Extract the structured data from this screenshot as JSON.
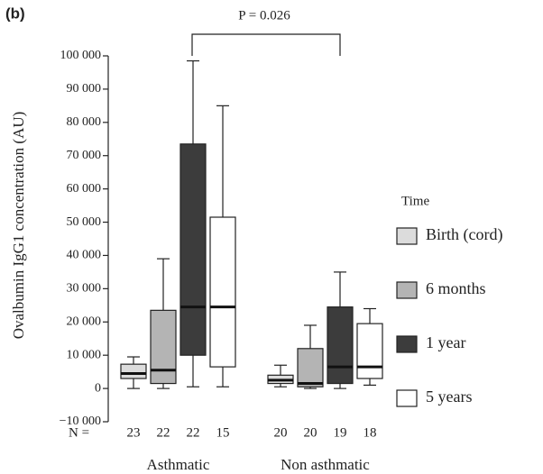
{
  "chart_data": {
    "type": "box",
    "title": "(b)",
    "annotation": "P = 0.026",
    "y_label": "Ovalbumin IgG1 concentration (AU)",
    "legend_title": "Time",
    "n_label": "N =",
    "categories": [
      "Asthmatic",
      "Non asthmatic"
    ],
    "ylim": [
      -10000,
      100000
    ],
    "yticks": [
      {
        "value": -10000,
        "label": "−10 000"
      },
      0,
      {
        "value": 10000,
        "label": "10 000"
      },
      {
        "value": 20000,
        "label": "20 000"
      },
      {
        "value": 30000,
        "label": "30 000"
      },
      {
        "value": 40000,
        "label": "40 000"
      },
      {
        "value": 50000,
        "label": "50 000"
      },
      {
        "value": 60000,
        "label": "60 000"
      },
      {
        "value": 70000,
        "label": "70 000"
      },
      {
        "value": 80000,
        "label": "80 000"
      },
      {
        "value": 90000,
        "label": "90 000"
      },
      {
        "value": 100000,
        "label": "100 000"
      }
    ],
    "series": [
      {
        "name": "Birth (cord)",
        "color": "#dcdcdc",
        "n": [
          23,
          20
        ],
        "values": [
          {
            "min": 0,
            "q1": 3000,
            "median": 4500,
            "q3": 7300,
            "max": 9500
          },
          {
            "min": 500,
            "q1": 1500,
            "median": 2500,
            "q3": 4000,
            "max": 7000
          }
        ]
      },
      {
        "name": "6 months",
        "color": "#b4b4b4",
        "n": [
          22,
          20
        ],
        "values": [
          {
            "min": 0,
            "q1": 1500,
            "median": 5500,
            "q3": 23500,
            "max": 39000
          },
          {
            "min": 0,
            "q1": 500,
            "median": 1500,
            "q3": 12000,
            "max": 19000
          }
        ]
      },
      {
        "name": "1 year",
        "color": "#3c3c3c",
        "n": [
          22,
          19
        ],
        "values": [
          {
            "min": 500,
            "q1": 10000,
            "median": 24500,
            "q3": 73500,
            "max": 98500
          },
          {
            "min": 0,
            "q1": 1500,
            "median": 6500,
            "q3": 24500,
            "max": 35000
          }
        ]
      },
      {
        "name": "5 years",
        "color": "#ffffff",
        "n": [
          15,
          18
        ],
        "values": [
          {
            "min": 500,
            "q1": 6500,
            "median": 24500,
            "q3": 51500,
            "max": 85000
          },
          {
            "min": 1000,
            "q1": 3000,
            "median": 6500,
            "q3": 19500,
            "max": 24000
          }
        ]
      }
    ]
  }
}
